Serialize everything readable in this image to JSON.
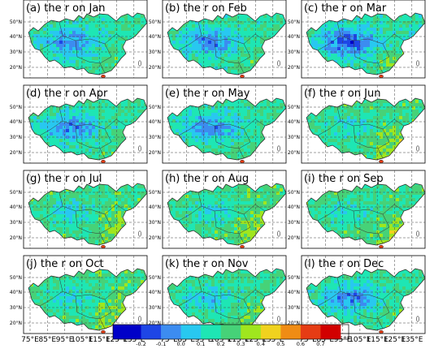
{
  "figure": {
    "panels": [
      {
        "title": "(a) the r on Jan",
        "pattern": "low"
      },
      {
        "title": "(b) the r on Feb",
        "pattern": "low"
      },
      {
        "title": "(c) the r on Mar",
        "pattern": "mar"
      },
      {
        "title": "(d) the r on Apr",
        "pattern": "low"
      },
      {
        "title": "(e) the r on May",
        "pattern": "low"
      },
      {
        "title": "(f) the r on Jun",
        "pattern": "summer"
      },
      {
        "title": "(g) the r on Jul",
        "pattern": "summer"
      },
      {
        "title": "(h) the r on Aug",
        "pattern": "summer"
      },
      {
        "title": "(i) the r on Sep",
        "pattern": "summer"
      },
      {
        "title": "(j) the r on Oct",
        "pattern": "summer"
      },
      {
        "title": "(k) the r on Nov",
        "pattern": "mid"
      },
      {
        "title": "(l) the r on Dec",
        "pattern": "low"
      }
    ],
    "lat_labels": [
      "50°N",
      "40°N",
      "30°N",
      "20°N"
    ],
    "lon_labels": [
      "75°E",
      "85°E",
      "95°E",
      "105°E",
      "115°E",
      "125°E",
      "135°E"
    ],
    "colorbar": {
      "ticks": [
        "-0.2",
        "-0.1",
        "0.0",
        "0.1",
        "0.2",
        "0.3",
        "0.4",
        "0.5",
        "0.6",
        "0.7"
      ],
      "colors": [
        "#0000c8",
        "#1e46e6",
        "#3c8cf0",
        "#28c8f0",
        "#1ee6b4",
        "#46d278",
        "#a0e61e",
        "#f0d21e",
        "#f08c14",
        "#e63c14",
        "#d20000"
      ]
    }
  }
}
